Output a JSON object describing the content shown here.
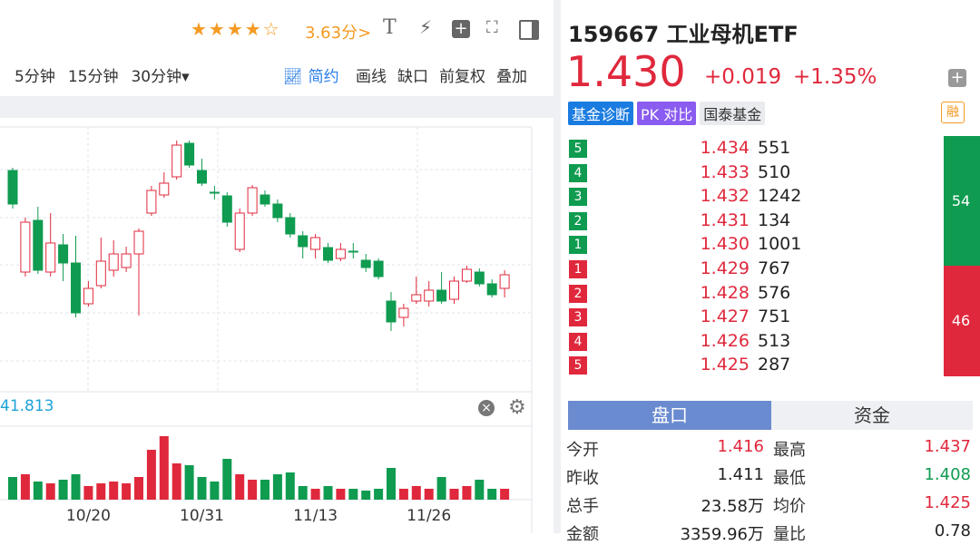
{
  "toolbar": {
    "rating": "3.63分>",
    "periods": [
      "5分钟",
      "15分钟",
      "30分钟▾"
    ],
    "simple": "简约",
    "tools": [
      "画线",
      "缺口",
      "前复权",
      "叠加"
    ]
  },
  "kline": {
    "ylim": [
      1.308,
      1.6
    ],
    "candles": [
      [
        1.552,
        1.555,
        1.51,
        1.515
      ],
      [
        1.44,
        1.5,
        1.435,
        1.495
      ],
      [
        1.497,
        1.512,
        1.438,
        1.442
      ],
      [
        1.44,
        1.505,
        1.435,
        1.472
      ],
      [
        1.47,
        1.482,
        1.43,
        1.45
      ],
      [
        1.45,
        1.48,
        1.39,
        1.395
      ],
      [
        1.405,
        1.43,
        1.402,
        1.422
      ],
      [
        1.425,
        1.478,
        1.422,
        1.452
      ],
      [
        1.442,
        1.475,
        1.435,
        1.46
      ],
      [
        1.445,
        1.468,
        1.44,
        1.46
      ],
      [
        1.46,
        1.488,
        1.392,
        1.485
      ],
      [
        1.505,
        1.535,
        1.502,
        1.53
      ],
      [
        1.525,
        1.55,
        1.522,
        1.538
      ],
      [
        1.545,
        1.585,
        1.542,
        1.58
      ],
      [
        1.582,
        1.585,
        1.555,
        1.558
      ],
      [
        1.552,
        1.565,
        1.535,
        1.538
      ],
      [
        1.528,
        1.535,
        1.52,
        1.527
      ],
      [
        1.524,
        1.528,
        1.49,
        1.495
      ],
      [
        1.465,
        1.51,
        1.462,
        1.505
      ],
      [
        1.505,
        1.536,
        1.502,
        1.533
      ],
      [
        1.525,
        1.53,
        1.512,
        1.515
      ],
      [
        1.515,
        1.52,
        1.495,
        1.5
      ],
      [
        1.5,
        1.505,
        1.478,
        1.482
      ],
      [
        1.48,
        1.485,
        1.455,
        1.468
      ],
      [
        1.465,
        1.482,
        1.455,
        1.478
      ],
      [
        1.467,
        1.472,
        1.45,
        1.453
      ],
      [
        1.455,
        1.472,
        1.452,
        1.465
      ],
      [
        1.463,
        1.472,
        1.455,
        1.462
      ],
      [
        1.453,
        1.46,
        1.44,
        1.445
      ],
      [
        1.452,
        1.455,
        1.432,
        1.435
      ],
      [
        1.408,
        1.418,
        1.375,
        1.385
      ],
      [
        1.39,
        1.405,
        1.38,
        1.4
      ],
      [
        1.408,
        1.435,
        1.405,
        1.415
      ],
      [
        1.408,
        1.43,
        1.402,
        1.42
      ],
      [
        1.42,
        1.44,
        1.405,
        1.408
      ],
      [
        1.41,
        1.435,
        1.405,
        1.43
      ],
      [
        1.43,
        1.447,
        1.428,
        1.443
      ],
      [
        1.44,
        1.444,
        1.424,
        1.427
      ],
      [
        1.427,
        1.432,
        1.412,
        1.415
      ],
      [
        1.422,
        1.442,
        1.412,
        1.437
      ]
    ],
    "dates": [
      null,
      null,
      null,
      null,
      null,
      null,
      "10/20",
      null,
      null,
      null,
      null,
      null,
      null,
      null,
      null,
      "10/31",
      null,
      null,
      null,
      null,
      null,
      null,
      null,
      null,
      "11/13",
      null,
      null,
      null,
      null,
      null,
      null,
      null,
      null,
      "11/26",
      null,
      null,
      null,
      null,
      null,
      null
    ],
    "vlim": [
      0,
      80
    ],
    "volumes": [
      25,
      28,
      20,
      18,
      22,
      28,
      15,
      18,
      20,
      18,
      25,
      55,
      70,
      40,
      38,
      25,
      20,
      45,
      28,
      22,
      22,
      28,
      30,
      15,
      12,
      15,
      12,
      12,
      10,
      12,
      35,
      12,
      15,
      12,
      25,
      12,
      15,
      22,
      12,
      12
    ],
    "indicator_value": "41.813"
  },
  "header": {
    "code_name": "159667 工业母机ETF",
    "price": "1.430",
    "change": "+0.019",
    "change_pct": "+1.35%",
    "tags": [
      "基金诊断",
      "PK 对比",
      "国泰基金"
    ],
    "margin": "融"
  },
  "orderbook": {
    "rows": [
      {
        "level": "5",
        "price": "1.434",
        "vol": "551",
        "side": "ask"
      },
      {
        "level": "4",
        "price": "1.433",
        "vol": "510",
        "side": "ask"
      },
      {
        "level": "3",
        "price": "1.432",
        "vol": "1242",
        "side": "ask"
      },
      {
        "level": "2",
        "price": "1.431",
        "vol": "134",
        "side": "ask"
      },
      {
        "level": "1",
        "price": "1.430",
        "vol": "1001",
        "side": "ask"
      },
      {
        "level": "1",
        "price": "1.429",
        "vol": "767",
        "side": "bid"
      },
      {
        "level": "2",
        "price": "1.428",
        "vol": "576",
        "side": "bid"
      },
      {
        "level": "3",
        "price": "1.427",
        "vol": "751",
        "side": "bid"
      },
      {
        "level": "4",
        "price": "1.426",
        "vol": "513",
        "side": "bid"
      },
      {
        "level": "5",
        "price": "1.425",
        "vol": "287",
        "side": "bid"
      }
    ],
    "ask_ratio": 54,
    "bid_ratio": 46
  },
  "tabs": [
    "盘口",
    "资金"
  ],
  "stats": [
    [
      "今开",
      "1.416",
      "最高",
      "1.437"
    ],
    [
      "昨收",
      "1.411",
      "最低",
      "1.408"
    ],
    [
      "总手",
      "23.58万",
      "均价",
      "1.425"
    ],
    [
      "金额",
      "3359.96万",
      "量比",
      "0.78"
    ]
  ]
}
